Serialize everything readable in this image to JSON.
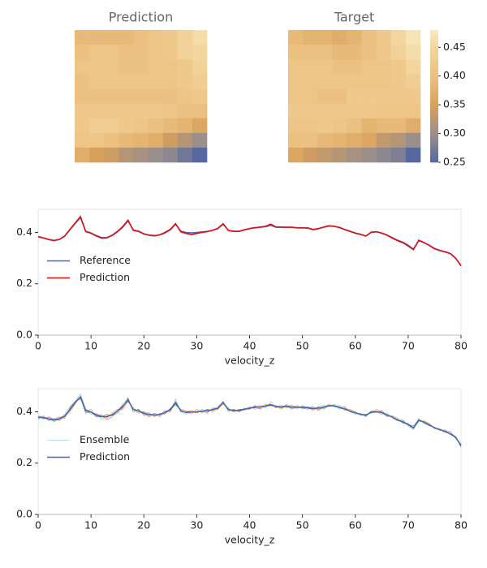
{
  "chart_data": [
    {
      "type": "heatmap",
      "title": "Prediction",
      "values": [
        [
          0.39,
          0.39,
          0.39,
          0.39,
          0.4,
          0.41,
          0.42,
          0.44,
          0.46
        ],
        [
          0.4,
          0.41,
          0.41,
          0.4,
          0.4,
          0.41,
          0.42,
          0.44,
          0.45
        ],
        [
          0.41,
          0.41,
          0.41,
          0.4,
          0.4,
          0.41,
          0.41,
          0.42,
          0.44
        ],
        [
          0.4,
          0.41,
          0.41,
          0.41,
          0.41,
          0.41,
          0.41,
          0.42,
          0.43
        ],
        [
          0.4,
          0.4,
          0.4,
          0.4,
          0.4,
          0.4,
          0.4,
          0.41,
          0.42
        ],
        [
          0.42,
          0.42,
          0.42,
          0.42,
          0.42,
          0.42,
          0.41,
          0.4,
          0.4
        ],
        [
          0.42,
          0.43,
          0.43,
          0.42,
          0.41,
          0.4,
          0.39,
          0.38,
          0.36
        ],
        [
          0.41,
          0.41,
          0.4,
          0.39,
          0.38,
          0.37,
          0.34,
          0.32,
          0.3
        ],
        [
          0.37,
          0.35,
          0.34,
          0.32,
          0.31,
          0.3,
          0.29,
          0.27,
          0.25
        ]
      ]
    },
    {
      "type": "heatmap",
      "title": "Target",
      "values": [
        [
          0.39,
          0.38,
          0.38,
          0.37,
          0.38,
          0.4,
          0.42,
          0.45,
          0.47
        ],
        [
          0.4,
          0.4,
          0.4,
          0.39,
          0.39,
          0.4,
          0.42,
          0.44,
          0.46
        ],
        [
          0.41,
          0.41,
          0.41,
          0.4,
          0.4,
          0.41,
          0.41,
          0.42,
          0.45
        ],
        [
          0.41,
          0.41,
          0.41,
          0.41,
          0.41,
          0.41,
          0.41,
          0.42,
          0.43
        ],
        [
          0.41,
          0.41,
          0.4,
          0.4,
          0.42,
          0.42,
          0.42,
          0.42,
          0.42
        ],
        [
          0.42,
          0.42,
          0.42,
          0.42,
          0.42,
          0.42,
          0.41,
          0.41,
          0.41
        ],
        [
          0.41,
          0.41,
          0.42,
          0.41,
          0.4,
          0.38,
          0.39,
          0.39,
          0.37
        ],
        [
          0.4,
          0.4,
          0.39,
          0.38,
          0.37,
          0.36,
          0.33,
          0.32,
          0.3
        ],
        [
          0.36,
          0.34,
          0.33,
          0.32,
          0.31,
          0.3,
          0.29,
          0.28,
          0.25
        ]
      ],
      "clim": [
        0.25,
        0.48
      ],
      "cticks": [
        {
          "value": 0.25,
          "label": "0.25"
        },
        {
          "value": 0.3,
          "label": "0.30"
        },
        {
          "value": 0.35,
          "label": "0.35"
        },
        {
          "value": 0.4,
          "label": "0.40"
        },
        {
          "value": 0.45,
          "label": "0.45"
        }
      ]
    },
    {
      "type": "line",
      "x_label": "velocity_z",
      "xlim": [
        0,
        80
      ],
      "xticks": [
        0,
        10,
        20,
        30,
        40,
        50,
        60,
        70,
        80
      ],
      "ylim": [
        0,
        0.49
      ],
      "yticks": [
        {
          "value": 0,
          "label": "0.0"
        },
        {
          "value": 0.2,
          "label": "0.2"
        },
        {
          "value": 0.4,
          "label": "0.4"
        }
      ],
      "series": [
        {
          "name": "Reference",
          "color": "#4466c4",
          "width": 1.6,
          "values": [
            0.383,
            0.378,
            0.372,
            0.368,
            0.372,
            0.385,
            0.41,
            0.435,
            0.458,
            0.405,
            0.398,
            0.388,
            0.38,
            0.38,
            0.388,
            0.402,
            0.42,
            0.445,
            0.41,
            0.405,
            0.395,
            0.39,
            0.388,
            0.39,
            0.398,
            0.41,
            0.432,
            0.405,
            0.4,
            0.398,
            0.4,
            0.402,
            0.404,
            0.408,
            0.415,
            0.432,
            0.408,
            0.405,
            0.405,
            0.41,
            0.415,
            0.418,
            0.42,
            0.422,
            0.428,
            0.42,
            0.42,
            0.42,
            0.42,
            0.418,
            0.418,
            0.418,
            0.412,
            0.415,
            0.42,
            0.425,
            0.424,
            0.42,
            0.412,
            0.405,
            0.398,
            0.393,
            0.386,
            0.4,
            0.402,
            0.398,
            0.39,
            0.38,
            0.37,
            0.362,
            0.35,
            0.335,
            0.368,
            0.36,
            0.35,
            0.338,
            0.33,
            0.325,
            0.318,
            0.3,
            0.27
          ]
        },
        {
          "name": "Prediction",
          "color": "#e01010",
          "width": 1.6,
          "values": [
            0.384,
            0.379,
            0.373,
            0.369,
            0.373,
            0.386,
            0.412,
            0.437,
            0.462,
            0.403,
            0.397,
            0.386,
            0.378,
            0.379,
            0.389,
            0.404,
            0.423,
            0.448,
            0.408,
            0.404,
            0.394,
            0.389,
            0.387,
            0.391,
            0.4,
            0.412,
            0.434,
            0.402,
            0.396,
            0.392,
            0.396,
            0.4,
            0.403,
            0.408,
            0.416,
            0.434,
            0.407,
            0.404,
            0.404,
            0.41,
            0.415,
            0.419,
            0.421,
            0.424,
            0.432,
            0.421,
            0.421,
            0.42,
            0.42,
            0.418,
            0.418,
            0.417,
            0.411,
            0.414,
            0.421,
            0.426,
            0.424,
            0.419,
            0.411,
            0.404,
            0.397,
            0.392,
            0.386,
            0.401,
            0.403,
            0.397,
            0.389,
            0.378,
            0.368,
            0.36,
            0.347,
            0.333,
            0.37,
            0.361,
            0.349,
            0.336,
            0.329,
            0.324,
            0.317,
            0.299,
            0.27
          ]
        }
      ],
      "legend": "center left"
    },
    {
      "type": "line",
      "x_label": "velocity_z",
      "xlim": [
        0,
        80
      ],
      "xticks": [
        0,
        10,
        20,
        30,
        40,
        50,
        60,
        70,
        80
      ],
      "ylim": [
        0,
        0.49
      ],
      "yticks": [
        {
          "value": 0,
          "label": "0.0"
        },
        {
          "value": 0.2,
          "label": "0.2"
        },
        {
          "value": 0.4,
          "label": "0.4"
        }
      ],
      "series": [
        {
          "name": "Ensemble",
          "color": "#7ccba2",
          "width": 0.6,
          "values": [
            0.39,
            0.37,
            0.38,
            0.36,
            0.375,
            0.39,
            0.42,
            0.44,
            0.47,
            0.41,
            0.39,
            0.395,
            0.37,
            0.385,
            0.39,
            0.4,
            0.43,
            0.45,
            0.4,
            0.41,
            0.39,
            0.385,
            0.39,
            0.38,
            0.4,
            0.405,
            0.45,
            0.4,
            0.39,
            0.4,
            0.395,
            0.41,
            0.4,
            0.41,
            0.42,
            0.44,
            0.4,
            0.41,
            0.4,
            0.415,
            0.41,
            0.42,
            0.425,
            0.415,
            0.44,
            0.42,
            0.425,
            0.415,
            0.42,
            0.41,
            0.425,
            0.415,
            0.405,
            0.42,
            0.425,
            0.42,
            0.43,
            0.41,
            0.415,
            0.4,
            0.39,
            0.395,
            0.38,
            0.405,
            0.4,
            0.39,
            0.395,
            0.375,
            0.365,
            0.37,
            0.345,
            0.33,
            0.375,
            0.355,
            0.345,
            0.34,
            0.325,
            0.33,
            0.31,
            0.305,
            0.26
          ]
        },
        {
          "color": "#f28e2b",
          "width": 0.6,
          "values": [
            0.37,
            0.385,
            0.365,
            0.375,
            0.365,
            0.38,
            0.4,
            0.43,
            0.46,
            0.4,
            0.41,
            0.38,
            0.39,
            0.375,
            0.395,
            0.41,
            0.41,
            0.44,
            0.415,
            0.4,
            0.4,
            0.395,
            0.38,
            0.395,
            0.39,
            0.415,
            0.425,
            0.41,
            0.405,
            0.39,
            0.41,
            0.395,
            0.41,
            0.4,
            0.41,
            0.43,
            0.415,
            0.4,
            0.41,
            0.405,
            0.42,
            0.41,
            0.415,
            0.43,
            0.42,
            0.425,
            0.41,
            0.43,
            0.415,
            0.425,
            0.41,
            0.42,
            0.415,
            0.41,
            0.415,
            0.43,
            0.42,
            0.425,
            0.405,
            0.41,
            0.4,
            0.385,
            0.39,
            0.395,
            0.41,
            0.4,
            0.38,
            0.385,
            0.375,
            0.355,
            0.355,
            0.34,
            0.36,
            0.365,
            0.355,
            0.335,
            0.335,
            0.32,
            0.325,
            0.295,
            0.275
          ]
        },
        {
          "color": "#e15759",
          "width": 0.6,
          "values": [
            0.38,
            0.375,
            0.38,
            0.37,
            0.38,
            0.375,
            0.415,
            0.44,
            0.45,
            0.41,
            0.4,
            0.39,
            0.385,
            0.37,
            0.38,
            0.405,
            0.425,
            0.44,
            0.41,
            0.395,
            0.4,
            0.38,
            0.395,
            0.385,
            0.405,
            0.4,
            0.44,
            0.4,
            0.4,
            0.405,
            0.395,
            0.405,
            0.395,
            0.415,
            0.41,
            0.44,
            0.405,
            0.41,
            0.4,
            0.41,
            0.41,
            0.425,
            0.41,
            0.425,
            0.43,
            0.415,
            0.42,
            0.425,
            0.41,
            0.42,
            0.415,
            0.41,
            0.42,
            0.405,
            0.42,
            0.42,
            0.425,
            0.415,
            0.42,
            0.4,
            0.395,
            0.39,
            0.385,
            0.4,
            0.395,
            0.405,
            0.385,
            0.38,
            0.37,
            0.36,
            0.35,
            0.335,
            0.365,
            0.36,
            0.345,
            0.34,
            0.33,
            0.32,
            0.315,
            0.3,
            0.265
          ]
        },
        {
          "color": "#59a14f",
          "width": 0.6,
          "values": [
            0.375,
            0.38,
            0.37,
            0.365,
            0.37,
            0.385,
            0.405,
            0.435,
            0.455,
            0.395,
            0.4,
            0.38,
            0.38,
            0.39,
            0.385,
            0.395,
            0.415,
            0.455,
            0.4,
            0.41,
            0.385,
            0.39,
            0.385,
            0.39,
            0.395,
            0.405,
            0.43,
            0.405,
            0.395,
            0.4,
            0.4,
            0.4,
            0.41,
            0.405,
            0.415,
            0.435,
            0.41,
            0.4,
            0.41,
            0.41,
            0.415,
            0.415,
            0.42,
            0.42,
            0.425,
            0.42,
            0.415,
            0.42,
            0.425,
            0.415,
            0.42,
            0.415,
            0.41,
            0.42,
            0.41,
            0.425,
            0.42,
            0.415,
            0.41,
            0.405,
            0.395,
            0.39,
            0.39,
            0.395,
            0.4,
            0.395,
            0.39,
            0.38,
            0.365,
            0.365,
            0.35,
            0.345,
            0.37,
            0.355,
            0.35,
            0.335,
            0.33,
            0.325,
            0.31,
            0.3,
            0.27
          ]
        },
        {
          "name": "Prediction",
          "color": "#4466c4",
          "width": 1.6,
          "values": [
            0.38,
            0.377,
            0.372,
            0.369,
            0.372,
            0.383,
            0.408,
            0.436,
            0.458,
            0.404,
            0.399,
            0.387,
            0.381,
            0.381,
            0.388,
            0.403,
            0.42,
            0.446,
            0.409,
            0.404,
            0.394,
            0.39,
            0.387,
            0.389,
            0.397,
            0.409,
            0.436,
            0.404,
            0.398,
            0.399,
            0.4,
            0.402,
            0.404,
            0.408,
            0.414,
            0.436,
            0.408,
            0.405,
            0.405,
            0.41,
            0.414,
            0.418,
            0.419,
            0.422,
            0.428,
            0.42,
            0.419,
            0.421,
            0.418,
            0.418,
            0.418,
            0.416,
            0.412,
            0.414,
            0.418,
            0.424,
            0.423,
            0.417,
            0.411,
            0.403,
            0.396,
            0.39,
            0.386,
            0.399,
            0.401,
            0.397,
            0.387,
            0.38,
            0.368,
            0.36,
            0.35,
            0.337,
            0.367,
            0.36,
            0.349,
            0.337,
            0.33,
            0.324,
            0.315,
            0.3,
            0.268
          ]
        }
      ],
      "legend": "center left"
    }
  ]
}
